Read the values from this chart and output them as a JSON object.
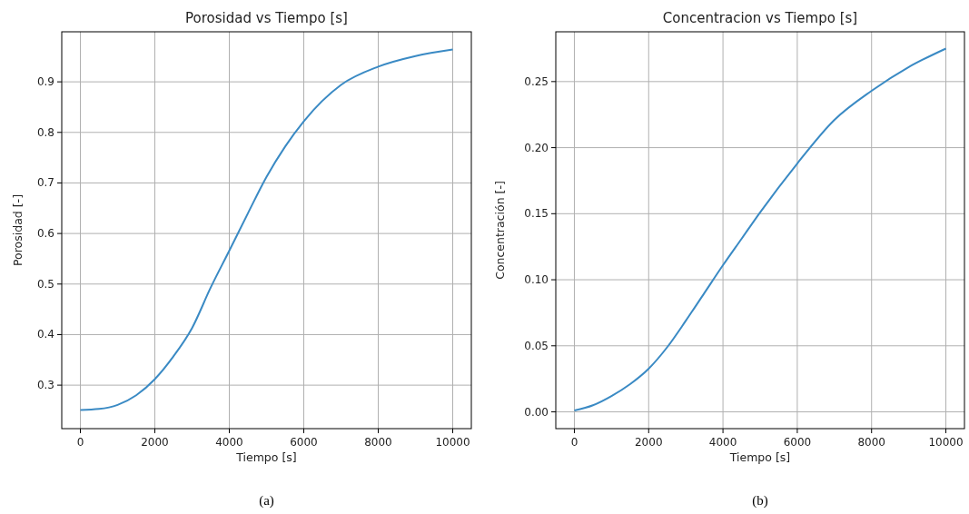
{
  "chart_data": [
    {
      "type": "line",
      "title": "Porosidad vs Tiempo [s]",
      "xlabel": "Tiempo [s]",
      "ylabel": "Porosidad [-]",
      "annotations": [
        "(a)"
      ],
      "x": [
        0,
        500,
        1000,
        1500,
        2000,
        2500,
        3000,
        3500,
        4000,
        4500,
        5000,
        5500,
        6000,
        7000,
        8000,
        9000,
        10000
      ],
      "series": [
        {
          "color": "#3a8ac4",
          "values": [
            0.251,
            0.253,
            0.261,
            0.28,
            0.312,
            0.357,
            0.413,
            0.493,
            0.566,
            0.64,
            0.712,
            0.772,
            0.822,
            0.894,
            0.93,
            0.951,
            0.964
          ]
        }
      ],
      "xlim": [
        -500,
        10500
      ],
      "xticks": [
        0,
        2000,
        4000,
        6000,
        8000,
        10000
      ],
      "ylim": [
        0.214,
        0.999
      ],
      "yticks": [
        {
          "value": 0.3,
          "label": "0.3"
        },
        {
          "value": 0.4,
          "label": "0.4"
        },
        {
          "value": 0.5,
          "label": "0.5"
        },
        {
          "value": 0.6,
          "label": "0.6"
        },
        {
          "value": 0.7,
          "label": "0.7"
        },
        {
          "value": 0.8,
          "label": "0.8"
        },
        {
          "value": 0.9,
          "label": "0.9"
        }
      ],
      "grid": true
    },
    {
      "type": "line",
      "title": "Concentracion vs Tiempo [s]",
      "xlabel": "Tiempo [s]",
      "ylabel": "Concentración [-]",
      "annotations": [
        "(b)"
      ],
      "x": [
        0,
        500,
        1000,
        1500,
        2000,
        2500,
        3000,
        3500,
        4000,
        4500,
        5000,
        6000,
        7000,
        8000,
        9000,
        10000
      ],
      "series": [
        {
          "color": "#3a8ac4",
          "values": [
            0.001,
            0.005,
            0.012,
            0.021,
            0.0327,
            0.049,
            0.069,
            0.09,
            0.111,
            0.131,
            0.151,
            0.188,
            0.221,
            0.243,
            0.261,
            0.275
          ]
        }
      ],
      "xlim": [
        -500,
        10500
      ],
      "xticks": [
        0,
        2000,
        4000,
        6000,
        8000,
        10000
      ],
      "ylim": [
        -0.0127,
        0.2877
      ],
      "yticks": [
        {
          "value": 0,
          "label": "0.00"
        },
        {
          "value": 0.05,
          "label": "0.05"
        },
        {
          "value": 0.1,
          "label": "0.10"
        },
        {
          "value": 0.15,
          "label": "0.15"
        },
        {
          "value": 0.2,
          "label": "0.20"
        },
        {
          "value": 0.25,
          "label": "0.25"
        }
      ],
      "grid": true
    }
  ]
}
